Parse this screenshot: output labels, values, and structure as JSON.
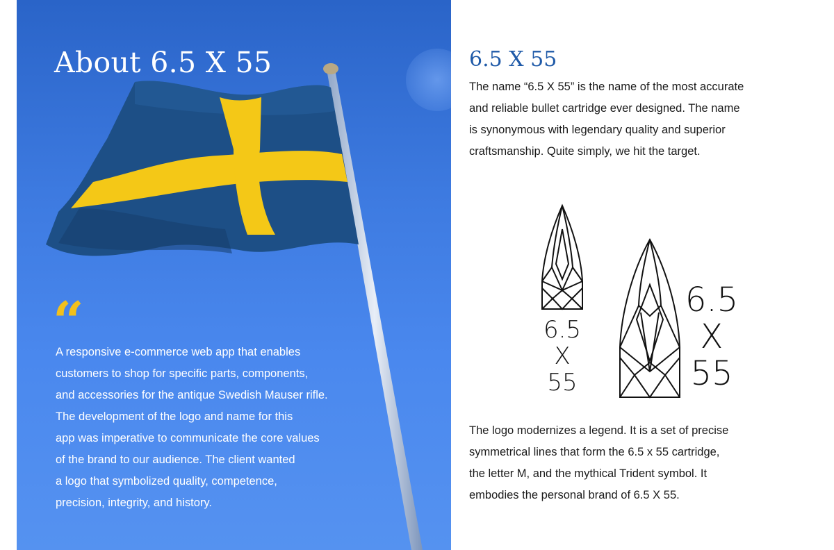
{
  "hero": {
    "title": "About 6.5 X 55",
    "quote_glyph": "“",
    "quote_lines": [
      "A responsive e-commerce web app that enables",
      "customers to shop for specific parts, components,",
      "and accessories for the antique Swedish Mauser rifle.",
      "The development of the logo and name for this",
      "app was imperative to communicate the core values",
      "of the brand to our audience. The client wanted",
      "a logo that  symbolized quality, competence,",
      "precision, integrity, and history."
    ],
    "flag_colors": {
      "blue": "#1d4f86",
      "yellow": "#f4c817",
      "sky": "#3d7ae0"
    }
  },
  "about": {
    "title": "6.5 X 55",
    "intro_lines": [
      "The name “6.5 X 55” is the name of the most accurate",
      "and reliable bullet cartridge ever designed. The name",
      "is synonymous with legendary quality and superior",
      "craftsmanship.  Quite simply, we hit the target."
    ],
    "logo": {
      "small_lines": [
        "6.5",
        "X",
        "55"
      ],
      "large_lines": [
        "6.5",
        "X",
        "55"
      ]
    },
    "logo_lines": [
      "The logo modernizes a legend. It is a set of precise",
      "symmetrical lines that form the 6.5 x 55 cartridge,",
      "the letter M, and the mythical Trident symbol. It",
      "embodies the personal brand of 6.5 X 55."
    ]
  },
  "colors": {
    "accent_blue": "#1f5aa8",
    "quote_yellow": "#f2c01c"
  }
}
